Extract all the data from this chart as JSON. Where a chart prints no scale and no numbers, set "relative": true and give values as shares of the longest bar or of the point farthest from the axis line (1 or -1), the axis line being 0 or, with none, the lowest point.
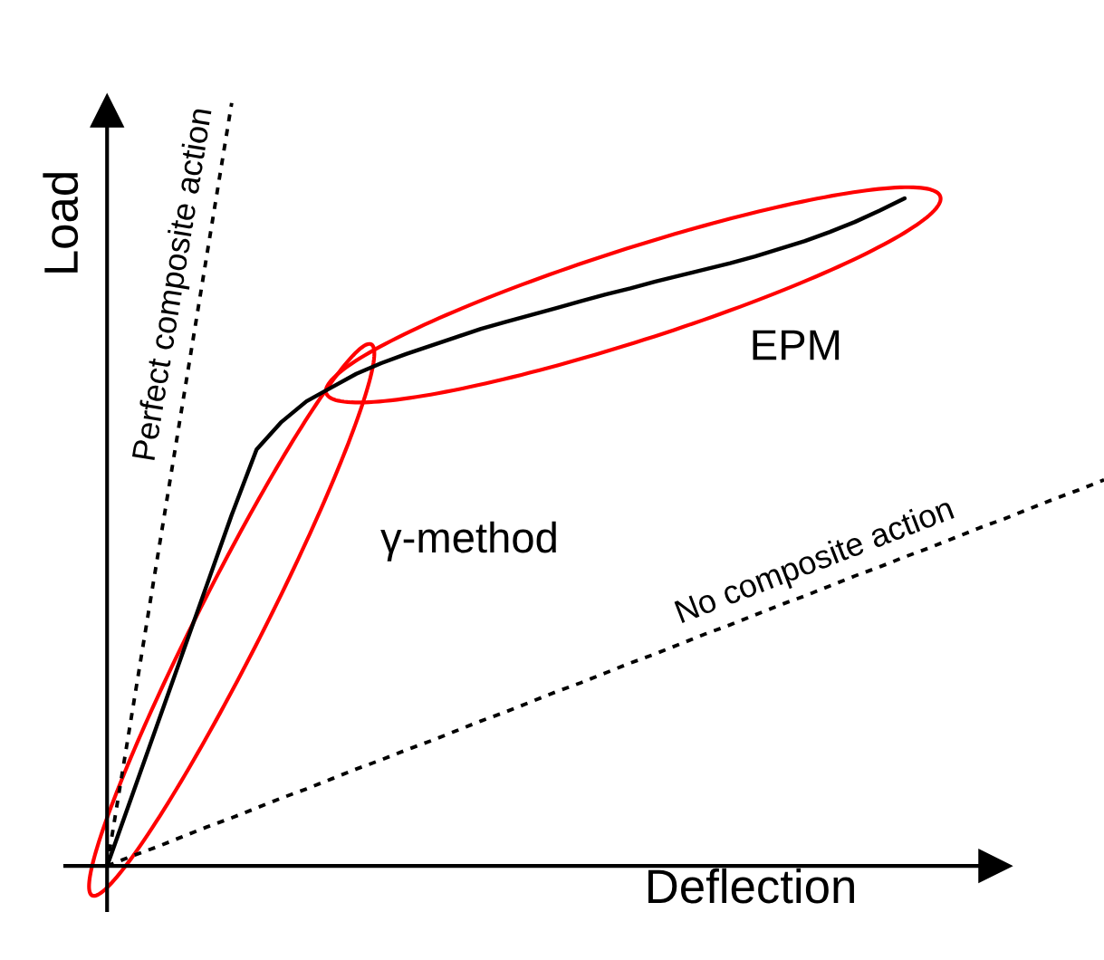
{
  "chart_data": {
    "type": "line",
    "relative": true,
    "xlabel": "Deflection",
    "ylabel": "Load",
    "categories": [
      null,
      null,
      null,
      null,
      null,
      null,
      null,
      null,
      null,
      null,
      null,
      null,
      null,
      null,
      null,
      null,
      null,
      null,
      null,
      null,
      null,
      null,
      null,
      null,
      null,
      null,
      null,
      null,
      null,
      null,
      null,
      null,
      null,
      null,
      null,
      null,
      null,
      null,
      null,
      null,
      null
    ],
    "series": [
      {
        "name": "Perfect composite action",
        "color": "#000000",
        "line_style": "dotted",
        "values": [
          0,
          0.2,
          0.4,
          0.6,
          0.8,
          1,
          null,
          null,
          null,
          null,
          null,
          null,
          null,
          null,
          null,
          null,
          null,
          null,
          null,
          null,
          null,
          null,
          null,
          null,
          null,
          null,
          null,
          null,
          null,
          null,
          null,
          null,
          null,
          null,
          null,
          null,
          null,
          null,
          null,
          null,
          null
        ]
      },
      {
        "name": "No composite action",
        "color": "#000000",
        "line_style": "dotted",
        "values": [
          0,
          0.013,
          0.025,
          0.038,
          0.051,
          0.063,
          0.076,
          0.089,
          0.101,
          0.114,
          0.127,
          0.139,
          0.152,
          0.164,
          0.177,
          0.19,
          0.202,
          0.215,
          0.228,
          0.24,
          0.253,
          0.266,
          0.278,
          0.291,
          0.304,
          0.316,
          0.329,
          0.342,
          0.354,
          0.367,
          0.38,
          0.392,
          0.405,
          0.417,
          0.43,
          0.443,
          0.455,
          0.468,
          0.481,
          0.493,
          0.506
        ]
      },
      {
        "color": "#000000",
        "line_style": "solid",
        "values": [
          0,
          0.092,
          0.184,
          0.276,
          0.368,
          0.46,
          0.546,
          0.582,
          0.609,
          0.627,
          0.645,
          0.659,
          0.671,
          0.682,
          0.693,
          0.704,
          0.713,
          0.722,
          0.731,
          0.74,
          0.749,
          0.757,
          0.766,
          0.774,
          0.782,
          0.79,
          0.799,
          0.809,
          0.819,
          0.831,
          0.844,
          0.859,
          0.875,
          null,
          null,
          null,
          null,
          null,
          null,
          null,
          null
        ]
      }
    ],
    "annotations": [
      "γ-method",
      "EPM"
    ]
  }
}
